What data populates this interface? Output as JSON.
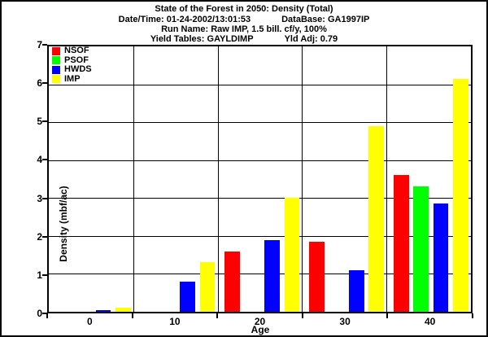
{
  "header": {
    "title": "State of the Forest in 2050: Density (Total)",
    "date_time": "Date/Time: 01-24-2002/13:01:53",
    "database": "DataBase: GA1997IP",
    "run_name": "Run Name: Raw IMP, 1.5 bill. cf/y, 100%",
    "yield_tables": "Yield Tables: GAYLDIMP",
    "yield_adj": "Yld Adj: 0.79"
  },
  "chart_data": {
    "type": "bar",
    "title": "State of the Forest in 2050: Density (Total)",
    "categories": [
      "0",
      "10",
      "20",
      "30",
      "40"
    ],
    "series": [
      {
        "name": "NSOF",
        "color": "#ff0000",
        "values": [
          0,
          0,
          1.6,
          1.85,
          3.6
        ]
      },
      {
        "name": "PSOF",
        "color": "#00ff00",
        "values": [
          0,
          0,
          0,
          0,
          3.3
        ]
      },
      {
        "name": "HWDS",
        "color": "#0000ff",
        "values": [
          0.05,
          0.8,
          1.9,
          1.1,
          2.85
        ]
      },
      {
        "name": "IMP",
        "color": "#ffff00",
        "values": [
          0.1,
          1.3,
          3.0,
          4.9,
          6.15
        ]
      }
    ],
    "xlabel": "Age",
    "ylabel": "Density (mbf/ac)",
    "ylim": [
      0,
      7
    ],
    "yticks": [
      0,
      1,
      2,
      3,
      4,
      5,
      6,
      7
    ],
    "grid": true,
    "legend_position": "top-left",
    "axis_color": "#000000",
    "background_color": "#ffffff"
  }
}
